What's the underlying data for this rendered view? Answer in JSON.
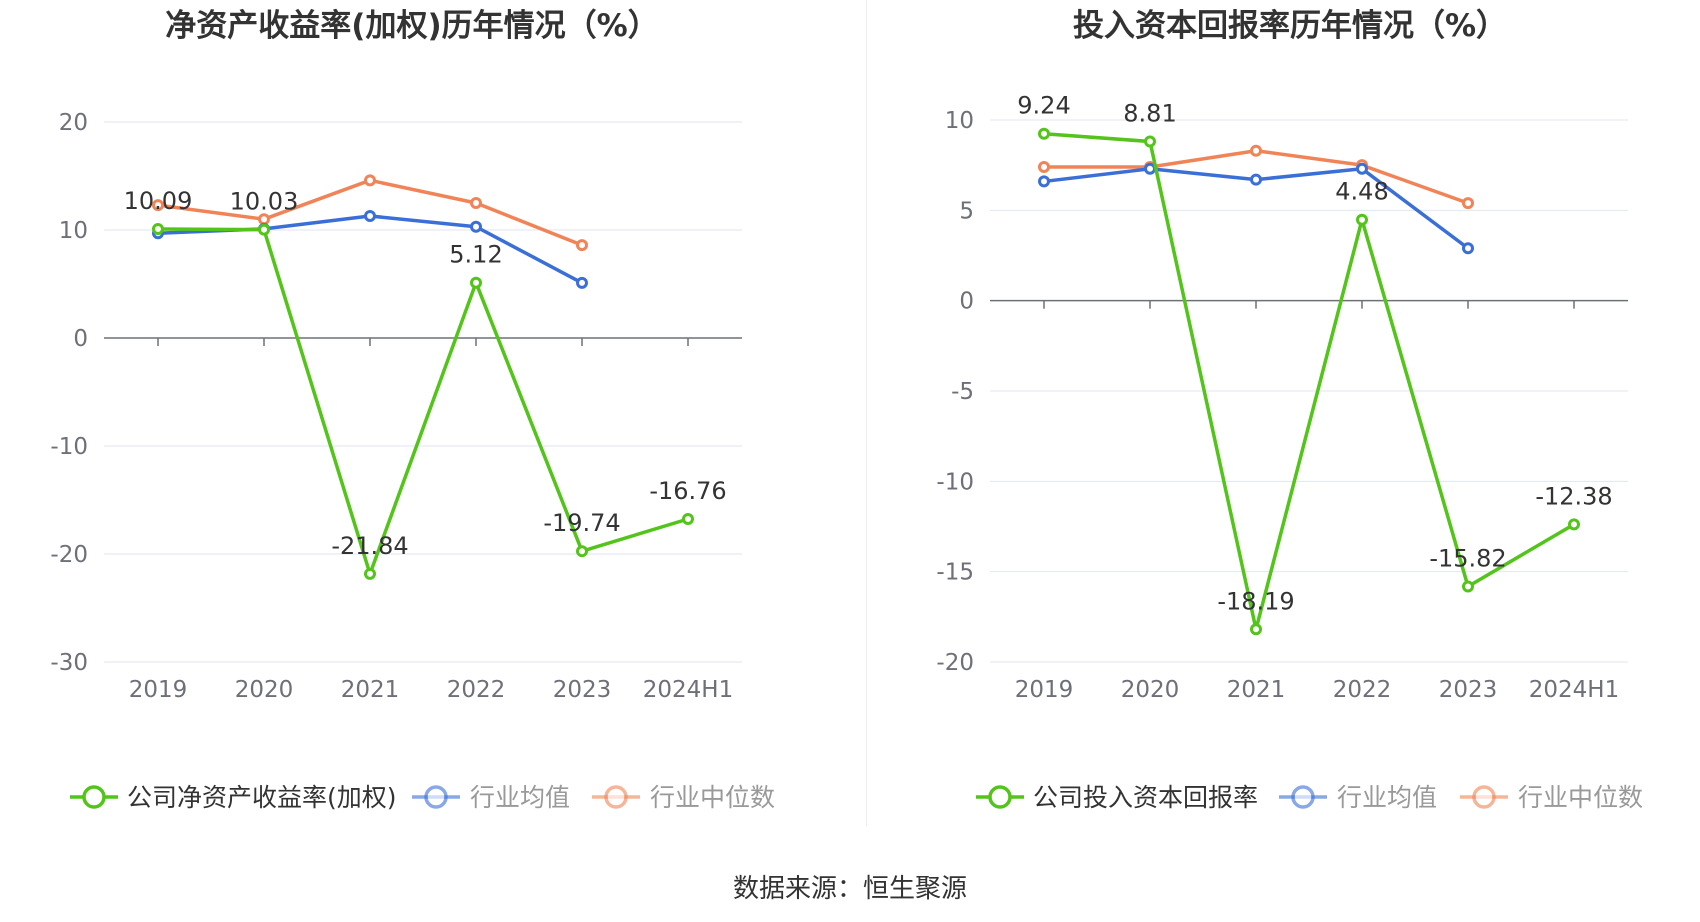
{
  "source_label": "数据来源：恒生聚源",
  "colors": {
    "company": "#52c41a",
    "industry_avg": "#3b6fd8",
    "industry_median": "#f08457"
  },
  "chart_data": [
    {
      "type": "line",
      "title": "净资产收益率(加权)历年情况（%）",
      "categories": [
        "2019",
        "2020",
        "2021",
        "2022",
        "2023",
        "2024H1"
      ],
      "ylim": [
        -30,
        20
      ],
      "yticks": [
        "20",
        "10",
        "0",
        "-10",
        "-20",
        "-30"
      ],
      "grid": true,
      "legend_position": "bottom",
      "series": [
        {
          "name": "公司净资产收益率(加权)",
          "values": [
            10.09,
            10.03,
            -21.84,
            5.12,
            -19.74,
            -16.76
          ],
          "labels": [
            "10.09",
            "10.03",
            "-21.84",
            "5.12",
            "-19.74",
            "-16.76"
          ]
        },
        {
          "name": "行业均值",
          "values": [
            9.7,
            10.1,
            11.3,
            10.3,
            5.1,
            null
          ]
        },
        {
          "name": "行业中位数",
          "values": [
            12.3,
            11.0,
            14.6,
            12.5,
            8.6,
            null
          ]
        }
      ]
    },
    {
      "type": "line",
      "title": "投入资本回报率历年情况（%）",
      "categories": [
        "2019",
        "2020",
        "2021",
        "2022",
        "2023",
        "2024H1"
      ],
      "ylim": [
        -20,
        10
      ],
      "yticks": [
        "10",
        "5",
        "0",
        "-5",
        "-10",
        "-15",
        "-20"
      ],
      "grid": true,
      "legend_position": "bottom",
      "series": [
        {
          "name": "公司投入资本回报率",
          "values": [
            9.24,
            8.81,
            -18.19,
            4.48,
            -15.82,
            -12.38
          ],
          "labels": [
            "9.24",
            "8.81",
            "-18.19",
            "4.48",
            "-15.82",
            "-12.38"
          ]
        },
        {
          "name": "行业均值",
          "values": [
            6.6,
            7.3,
            6.7,
            7.3,
            2.9,
            null
          ]
        },
        {
          "name": "行业中位数",
          "values": [
            7.4,
            7.4,
            8.3,
            7.5,
            5.4,
            null
          ]
        }
      ]
    }
  ]
}
